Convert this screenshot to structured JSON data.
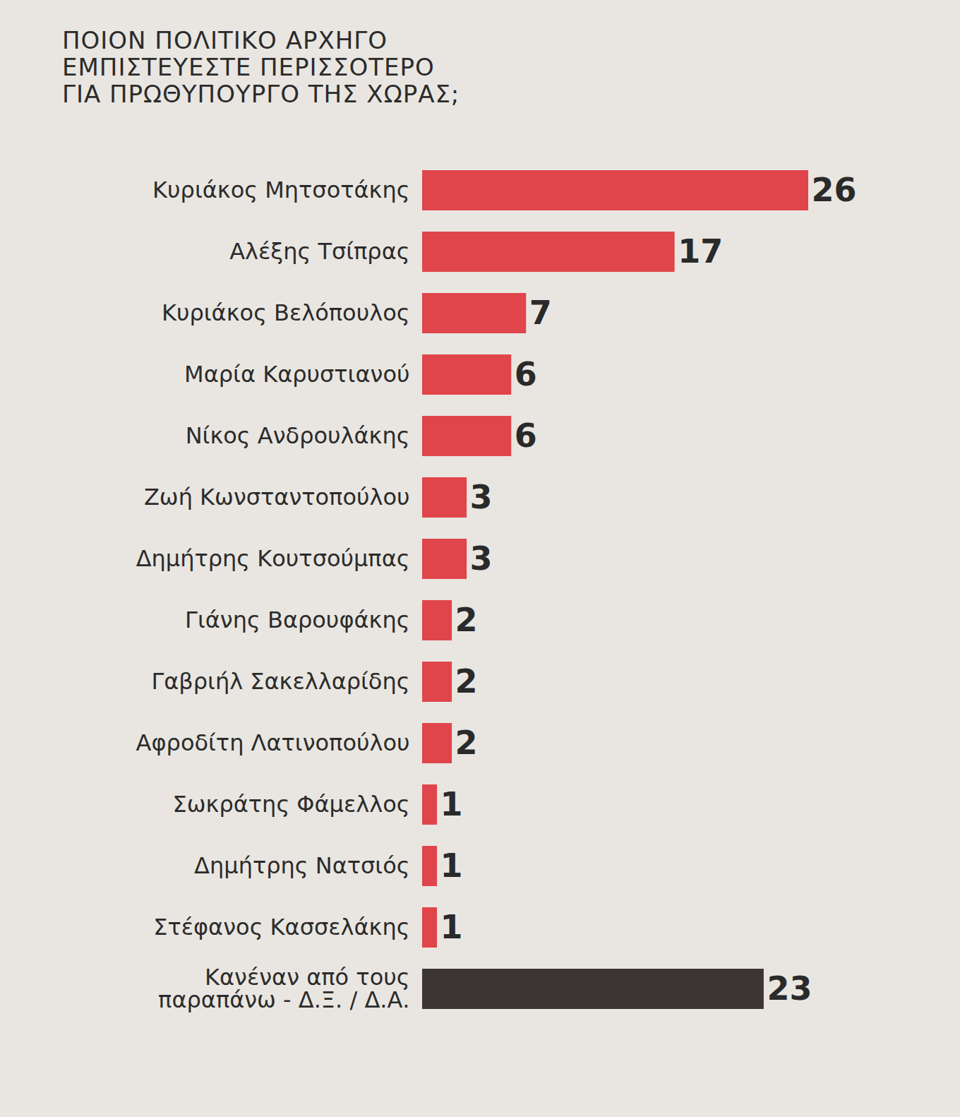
{
  "chart_data": {
    "type": "bar",
    "orientation": "horizontal",
    "title": "ΠΟΙΟΝ ΠΟΛΙΤΙΚΟ ΑΡΧΗΓΟ\nΕΜΠΙΣΤΕΥΕΣΤΕ ΠΕΡΙΣΣΟΤΕΡΟ\nΓΙΑ ΠΡΩΘΥΠΟΥΡΓΟ ΤΗΣ ΧΩΡΑΣ;",
    "categories": [
      "Κυριάκος Μητσοτάκης",
      "Αλέξης Τσίπρας",
      "Κυριάκος Βελόπουλος",
      "Μαρία Καρυστιανού",
      "Νίκος Ανδρουλάκης",
      "Ζωή Κωνσταντοπούλου",
      "Δημήτρης Κουτσούμπας",
      "Γιάνης Βαρουφάκης",
      "Γαβριήλ Σακελλαρίδης",
      "Αφροδίτη Λατινοπούλου",
      "Σωκράτης Φάμελλος",
      "Δημήτρης Νατσιός",
      "Στέφανος Κασσελάκης",
      "Κανέναν από τους\nπαραπάνω - Δ.Ξ. / Δ.Α."
    ],
    "values": [
      26,
      17,
      7,
      6,
      6,
      3,
      3,
      2,
      2,
      2,
      1,
      1,
      1,
      23
    ],
    "colors": [
      "#e0454b",
      "#e0454b",
      "#e0454b",
      "#e0454b",
      "#e0454b",
      "#e0454b",
      "#e0454b",
      "#e0454b",
      "#e0454b",
      "#e0454b",
      "#e0454b",
      "#e0454b",
      "#e0454b",
      "#3b3536"
    ],
    "xlim": [
      0,
      26
    ],
    "data_labels": true,
    "tick_labels": "y",
    "grid": false
  }
}
